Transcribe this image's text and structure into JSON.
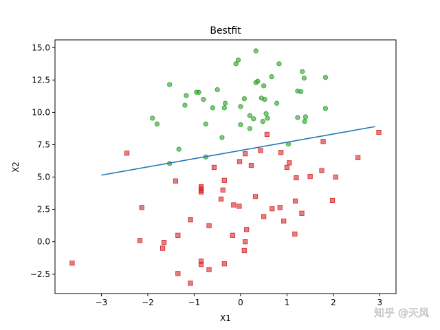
{
  "chart_data": {
    "type": "scatter",
    "title": "Bestfit",
    "xlabel": "X1",
    "ylabel": "X2",
    "xlim": [
      -4.0,
      3.35
    ],
    "ylim": [
      -4.0,
      15.6
    ],
    "xticks": [
      -3,
      -2,
      -1,
      0,
      1,
      2,
      3
    ],
    "xtick_labels": [
      "−3",
      "−2",
      "−1",
      "0",
      "1",
      "2",
      "3"
    ],
    "yticks": [
      -2.5,
      0.0,
      2.5,
      5.0,
      7.5,
      10.0,
      12.5,
      15.0
    ],
    "ytick_labels": [
      "−2.5",
      "0.0",
      "2.5",
      "5.0",
      "7.5",
      "10.0",
      "12.5",
      "15.0"
    ],
    "grid": false,
    "series": [
      {
        "marker": "circle",
        "color": "#2ca02c",
        "points": [
          [
            0.33,
            14.75
          ],
          [
            -0.05,
            14.05
          ],
          [
            -0.1,
            13.75
          ],
          [
            0.83,
            13.75
          ],
          [
            1.33,
            13.15
          ],
          [
            0.67,
            12.75
          ],
          [
            1.37,
            12.65
          ],
          [
            1.83,
            12.7
          ],
          [
            0.37,
            12.4
          ],
          [
            0.33,
            12.3
          ],
          [
            -1.53,
            12.15
          ],
          [
            0.5,
            12.05
          ],
          [
            1.23,
            11.65
          ],
          [
            1.3,
            11.6
          ],
          [
            -0.9,
            11.55
          ],
          [
            -0.95,
            11.55
          ],
          [
            -0.5,
            11.75
          ],
          [
            -1.17,
            11.3
          ],
          [
            0.45,
            11.1
          ],
          [
            0.52,
            11.0
          ],
          [
            -0.8,
            11.0
          ],
          [
            0.08,
            11.05
          ],
          [
            -0.33,
            10.7
          ],
          [
            0.78,
            10.7
          ],
          [
            -1.2,
            10.55
          ],
          [
            0.0,
            10.45
          ],
          [
            -0.35,
            10.35
          ],
          [
            -0.6,
            10.35
          ],
          [
            1.83,
            10.3
          ],
          [
            0.55,
            9.9
          ],
          [
            0.2,
            9.75
          ],
          [
            0.58,
            9.55
          ],
          [
            0.28,
            9.5
          ],
          [
            1.4,
            9.65
          ],
          [
            1.23,
            9.6
          ],
          [
            -1.9,
            9.55
          ],
          [
            1.38,
            9.3
          ],
          [
            0.48,
            9.3
          ],
          [
            -0.75,
            9.1
          ],
          [
            -1.8,
            9.1
          ],
          [
            0.0,
            9.05
          ],
          [
            0.2,
            8.75
          ],
          [
            -0.4,
            8.05
          ],
          [
            1.03,
            7.55
          ],
          [
            -1.33,
            7.15
          ],
          [
            -0.75,
            6.55
          ],
          [
            -1.53,
            6.05
          ]
        ]
      },
      {
        "marker": "square",
        "color": "#d62728",
        "points": [
          [
            2.98,
            8.45
          ],
          [
            0.57,
            8.3
          ],
          [
            1.78,
            7.75
          ],
          [
            0.43,
            7.05
          ],
          [
            0.87,
            6.9
          ],
          [
            -2.45,
            6.85
          ],
          [
            0.1,
            6.8
          ],
          [
            2.53,
            6.5
          ],
          [
            -0.02,
            6.2
          ],
          [
            1.05,
            6.1
          ],
          [
            0.23,
            5.9
          ],
          [
            1.0,
            5.75
          ],
          [
            -0.57,
            5.75
          ],
          [
            1.75,
            5.5
          ],
          [
            1.5,
            5.05
          ],
          [
            1.2,
            4.95
          ],
          [
            2.05,
            5.0
          ],
          [
            -1.4,
            4.7
          ],
          [
            -0.35,
            4.75
          ],
          [
            -0.85,
            4.25
          ],
          [
            -0.85,
            4.1
          ],
          [
            -0.85,
            3.95
          ],
          [
            -0.85,
            3.85
          ],
          [
            -0.38,
            4.0
          ],
          [
            0.32,
            3.5
          ],
          [
            -0.42,
            3.3
          ],
          [
            1.18,
            3.15
          ],
          [
            1.98,
            3.2
          ],
          [
            -2.13,
            2.65
          ],
          [
            -0.15,
            2.85
          ],
          [
            -0.03,
            2.75
          ],
          [
            0.85,
            2.65
          ],
          [
            0.68,
            2.55
          ],
          [
            1.32,
            2.2
          ],
          [
            0.5,
            1.95
          ],
          [
            -1.08,
            1.7
          ],
          [
            0.93,
            1.6
          ],
          [
            -0.68,
            1.25
          ],
          [
            0.13,
            0.95
          ],
          [
            1.17,
            0.6
          ],
          [
            -1.35,
            0.5
          ],
          [
            -0.17,
            0.5
          ],
          [
            -2.17,
            0.1
          ],
          [
            -1.65,
            -0.05
          ],
          [
            0.1,
            0.0
          ],
          [
            -1.68,
            -0.5
          ],
          [
            0.08,
            -0.68
          ],
          [
            -3.63,
            -1.65
          ],
          [
            -0.85,
            -1.5
          ],
          [
            -0.85,
            -1.75
          ],
          [
            -0.35,
            -1.7
          ],
          [
            -0.68,
            -2.15
          ],
          [
            -1.35,
            -2.45
          ],
          [
            -1.08,
            -3.2
          ]
        ]
      }
    ],
    "fit_line": {
      "color": "#1f77b4",
      "x": [
        -3.0,
        2.9
      ],
      "y": [
        5.15,
        8.9
      ]
    }
  },
  "watermark": "知乎 @天风"
}
